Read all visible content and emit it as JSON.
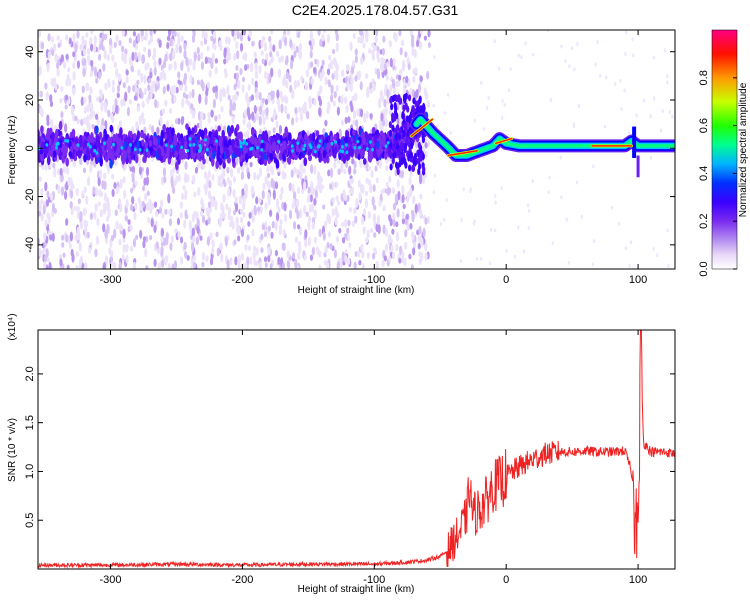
{
  "title": "C2E4.2025.178.04.57.G31",
  "chart_data": [
    {
      "type": "heatmap",
      "xlabel": "Height of straight line (km)",
      "ylabel": "Frequency (Hz)",
      "xlim": [
        -355,
        128
      ],
      "ylim": [
        -50,
        49
      ],
      "xticks": [
        -300,
        -200,
        -100,
        0,
        100
      ],
      "yticks": [
        -40,
        -20,
        0,
        20,
        40
      ],
      "colorbar": {
        "label": "Normalized spectral amplitude",
        "range": [
          0,
          1
        ],
        "ticks": [
          "0.0",
          "0.2",
          "0.4",
          "0.6",
          "0.8"
        ],
        "colormap": [
          "#ffffff",
          "#e8d8f8",
          "#b68ff0",
          "#7a2cf0",
          "#4400ff",
          "#0000ff",
          "#00c8ff",
          "#00ff80",
          "#22ff00",
          "#c8ff00",
          "#ff9900",
          "#ff0000",
          "#ff0080"
        ]
      },
      "ridge": {
        "x": [
          -355,
          -300,
          -200,
          -100,
          -80,
          -65,
          -55,
          -45,
          -38,
          -30,
          -20,
          -10,
          -5,
          0,
          10,
          20,
          40,
          60,
          80,
          90,
          95,
          100,
          110,
          128
        ],
        "y": [
          1,
          1,
          1,
          1,
          2,
          12,
          6,
          1,
          -3,
          -3,
          -1,
          1,
          4,
          2,
          1,
          1,
          1,
          1,
          1,
          1,
          3,
          1,
          1,
          1
        ]
      },
      "peak_segments": [
        {
          "x": [
            -72,
            -56
          ],
          "y": [
            5,
            12
          ]
        },
        {
          "x": [
            -44,
            -22
          ],
          "y": [
            -3,
            -1
          ]
        },
        {
          "x": [
            -8,
            4
          ],
          "y": [
            2,
            4
          ]
        },
        {
          "x": [
            65,
            95
          ],
          "y": [
            1,
            1
          ]
        }
      ]
    },
    {
      "type": "line",
      "xlabel": "Height of straight line (km)",
      "ylabel": "SNR (10 * v/v)",
      "yscale_label": "(x10⁴)",
      "xlim": [
        -355,
        128
      ],
      "ylim": [
        0.0,
        2.45
      ],
      "xticks": [
        -300,
        -200,
        -100,
        0,
        100
      ],
      "yticks": [
        0.5,
        1.0,
        1.5,
        2.0
      ],
      "ytick_labels": [
        "0.5",
        "1.0",
        "1.5",
        "2.0"
      ],
      "series": [
        {
          "color": "#ee2222",
          "x": [
            -355,
            -300,
            -250,
            -200,
            -150,
            -100,
            -75,
            -60,
            -50,
            -45,
            -40,
            -35,
            -30,
            -28,
            -25,
            -20,
            -15,
            -10,
            -5,
            0,
            10,
            20,
            30,
            40,
            50,
            60,
            70,
            80,
            90,
            95,
            98,
            100,
            102,
            104,
            110,
            120,
            128
          ],
          "y": [
            0.04,
            0.04,
            0.05,
            0.04,
            0.05,
            0.05,
            0.07,
            0.09,
            0.13,
            0.18,
            0.28,
            0.38,
            0.55,
            0.85,
            0.55,
            0.62,
            0.7,
            0.85,
            0.88,
            0.95,
            1.05,
            1.12,
            1.18,
            1.2,
            1.2,
            1.21,
            1.2,
            1.2,
            1.21,
            1.0,
            0.5,
            0.2,
            2.4,
            1.3,
            1.2,
            1.2,
            1.18
          ]
        }
      ]
    }
  ]
}
